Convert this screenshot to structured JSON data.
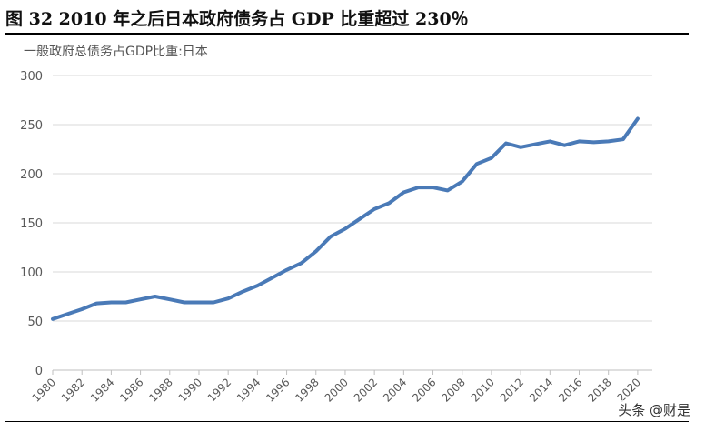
{
  "figure": {
    "title": "图 32 2010 年之后日本政府债务占 GDP 比重超过 230％",
    "watermark": "头条 @财是"
  },
  "chart_data": {
    "type": "line",
    "title": "一般政府总债务占GDP比重:日本",
    "xlabel": "",
    "ylabel": "",
    "ylim": [
      0,
      300
    ],
    "yticks": [
      0,
      50,
      100,
      150,
      200,
      250,
      300
    ],
    "xlim": [
      1980,
      2021
    ],
    "xticks": [
      1980,
      1982,
      1984,
      1986,
      1988,
      1990,
      1992,
      1994,
      1996,
      1998,
      2000,
      2002,
      2004,
      2006,
      2008,
      2010,
      2012,
      2014,
      2016,
      2018,
      2020
    ],
    "grid": "horizontal",
    "color": "#4a7ab7",
    "series": [
      {
        "name": "",
        "x": [
          1980,
          1981,
          1982,
          1983,
          1984,
          1985,
          1986,
          1987,
          1988,
          1989,
          1990,
          1991,
          1992,
          1993,
          1994,
          1995,
          1996,
          1997,
          1998,
          1999,
          2000,
          2001,
          2002,
          2003,
          2004,
          2005,
          2006,
          2007,
          2008,
          2009,
          2010,
          2011,
          2012,
          2013,
          2014,
          2015,
          2016,
          2017,
          2018,
          2019,
          2020
        ],
        "values": [
          52,
          57,
          62,
          68,
          69,
          69,
          72,
          75,
          72,
          69,
          69,
          69,
          73,
          80,
          86,
          94,
          102,
          109,
          121,
          136,
          144,
          154,
          164,
          170,
          181,
          186,
          186,
          183,
          192,
          210,
          216,
          231,
          227,
          230,
          233,
          229,
          233,
          232,
          233,
          235,
          256
        ]
      }
    ]
  }
}
